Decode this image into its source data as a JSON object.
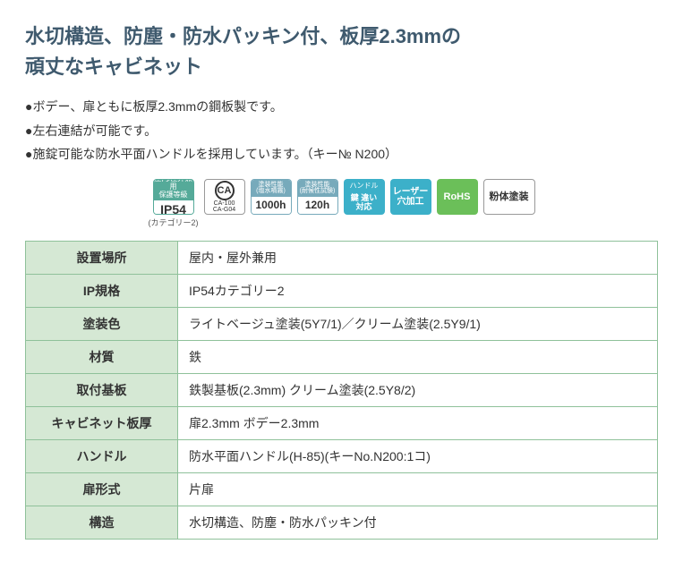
{
  "heading": {
    "line1": "水切構造、防塵・防水パッキン付、板厚2.3mmの",
    "line2": "頑丈なキャビネット",
    "color": "#3f5a6e"
  },
  "bullets": [
    "ボデー、扉ともに板厚2.3mmの鋼板製です。",
    "左右連結が可能です。",
    "施錠可能な防水平面ハンドルを採用しています。（キー№ N200）"
  ],
  "badges": {
    "ip54": {
      "top": "屋内/屋外兼用\n保護等級",
      "bot": "IP54",
      "caption": "(カテゴリー2)"
    },
    "ca": {
      "main": "CA",
      "sub": "CA-100\nCA-G04"
    },
    "b1000": {
      "top": "塗装性能\n(塩水噴霧)",
      "bot": "1000h"
    },
    "b120": {
      "top": "塗装性能\n(耐候性試験)",
      "bot": "120h"
    },
    "handle": {
      "top": "ハンドル",
      "bot": "鍵 違い\n対応"
    },
    "laser": {
      "text": "レーザー\n穴加工"
    },
    "rohs": {
      "text": "RoHS"
    },
    "powder": {
      "text": "粉体塗装"
    }
  },
  "spec": {
    "columns": [
      "label",
      "value"
    ],
    "rows": [
      {
        "label": "設置場所",
        "value": "屋内・屋外兼用"
      },
      {
        "label": "IP規格",
        "value": "IP54カテゴリー2"
      },
      {
        "label": "塗装色",
        "value": "ライトベージュ塗装(5Y7/1)／クリーム塗装(2.5Y9/1)"
      },
      {
        "label": "材質",
        "value": "鉄"
      },
      {
        "label": "取付基板",
        "value": "鉄製基板(2.3mm) クリーム塗装(2.5Y8/2)"
      },
      {
        "label": "キャビネット板厚",
        "value": "扉2.3mm ボデー2.3mm"
      },
      {
        "label": "ハンドル",
        "value": "防水平面ハンドル(H-85)(キーNo.N200:1コ)"
      },
      {
        "label": "扉形式",
        "value": "片扉"
      },
      {
        "label": "構造",
        "value": "水切構造、防塵・防水パッキン付"
      }
    ],
    "header_bg": "#d5e8d4",
    "border_color": "#8fc19a"
  }
}
